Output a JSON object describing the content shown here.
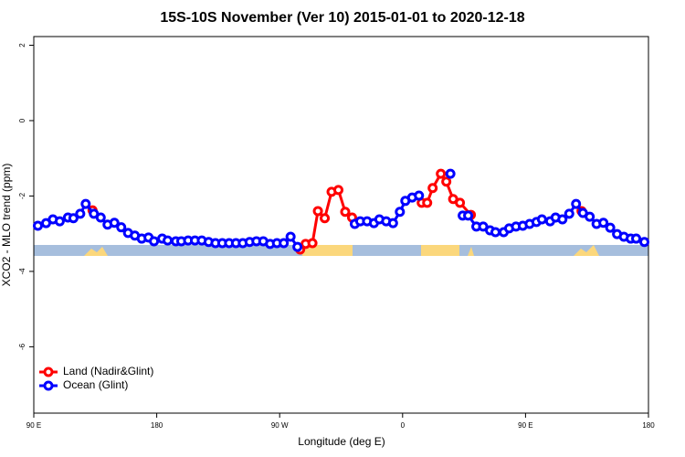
{
  "chart_data": {
    "type": "line",
    "title": "15S-10S November (Ver 10)   2015-01-01 to 2020-12-18",
    "x_label": "Longitude (deg E)",
    "y_label": "XCO2 - MLO trend (ppm)",
    "xlim": [
      90,
      540
    ],
    "xticks": [
      {
        "value": 90,
        "label": "90 E"
      },
      {
        "value": 180,
        "label": "180"
      },
      {
        "value": 270,
        "label": "90 W"
      },
      {
        "value": 360,
        "label": "0"
      },
      {
        "value": 450,
        "label": "90 E"
      },
      {
        "value": 540,
        "label": "180"
      }
    ],
    "ylim": [
      -7.76,
      2.23
    ],
    "yticks": [
      -6,
      -4,
      -2,
      0,
      2
    ],
    "legend": "bottomleft",
    "series": [
      {
        "name": "Land (Nadir&Glint)",
        "color": "#ff0000",
        "x": [
          133,
          134,
          285,
          289,
          294,
          298,
          303,
          308,
          313,
          318,
          323,
          324,
          374,
          378,
          382,
          388,
          392,
          397,
          402,
          410,
          411,
          491
        ],
        "values": [
          -2.38,
          null,
          -3.42,
          -3.27,
          -3.25,
          -2.4,
          -2.59,
          -1.89,
          -1.84,
          -2.42,
          -2.57,
          null,
          -2.18,
          -2.18,
          -1.79,
          -1.41,
          -1.62,
          -2.08,
          -2.18,
          -2.5,
          null,
          -2.4
        ]
      },
      {
        "name": "Ocean (Glint)",
        "color": "#0000ff",
        "x": [
          93,
          99,
          104,
          109,
          115,
          119,
          124,
          128,
          134,
          139,
          144,
          149,
          154,
          159,
          164,
          169,
          174,
          178,
          184,
          188,
          194,
          198,
          203,
          208,
          213,
          218,
          223,
          228,
          233,
          238,
          243,
          248,
          253,
          258,
          263,
          268,
          273,
          278,
          283,
          284,
          325,
          329,
          334,
          339,
          343,
          348,
          353,
          358,
          362,
          367,
          372,
          373,
          395,
          396,
          404,
          408,
          414,
          419,
          424,
          428,
          434,
          438,
          443,
          448,
          453,
          458,
          462,
          468,
          472,
          477,
          482,
          487,
          492,
          497,
          502,
          507,
          512,
          517,
          522,
          527,
          531,
          537
        ],
        "values": [
          -2.79,
          -2.72,
          -2.62,
          -2.67,
          -2.57,
          -2.59,
          -2.47,
          -2.21,
          -2.47,
          -2.57,
          -2.76,
          -2.71,
          -2.83,
          -2.98,
          -3.05,
          -3.13,
          -3.1,
          -3.2,
          -3.13,
          -3.18,
          -3.2,
          -3.2,
          -3.18,
          -3.18,
          -3.18,
          -3.22,
          -3.25,
          -3.25,
          -3.25,
          -3.25,
          -3.25,
          -3.22,
          -3.2,
          -3.2,
          -3.27,
          -3.25,
          -3.25,
          -3.08,
          -3.35,
          null,
          -2.74,
          -2.67,
          -2.67,
          -2.72,
          -2.62,
          -2.67,
          -2.72,
          -2.42,
          -2.13,
          -2.04,
          -1.99,
          null,
          -1.41,
          null,
          -2.52,
          -2.52,
          -2.81,
          -2.81,
          -2.91,
          -2.96,
          -2.96,
          -2.86,
          -2.81,
          -2.79,
          -2.74,
          -2.69,
          -2.62,
          -2.67,
          -2.57,
          -2.62,
          -2.47,
          -2.21,
          -2.45,
          -2.55,
          -2.74,
          -2.71,
          -2.84,
          -3.01,
          -3.08,
          -3.13,
          -3.13,
          -3.22
        ]
      }
    ]
  }
}
